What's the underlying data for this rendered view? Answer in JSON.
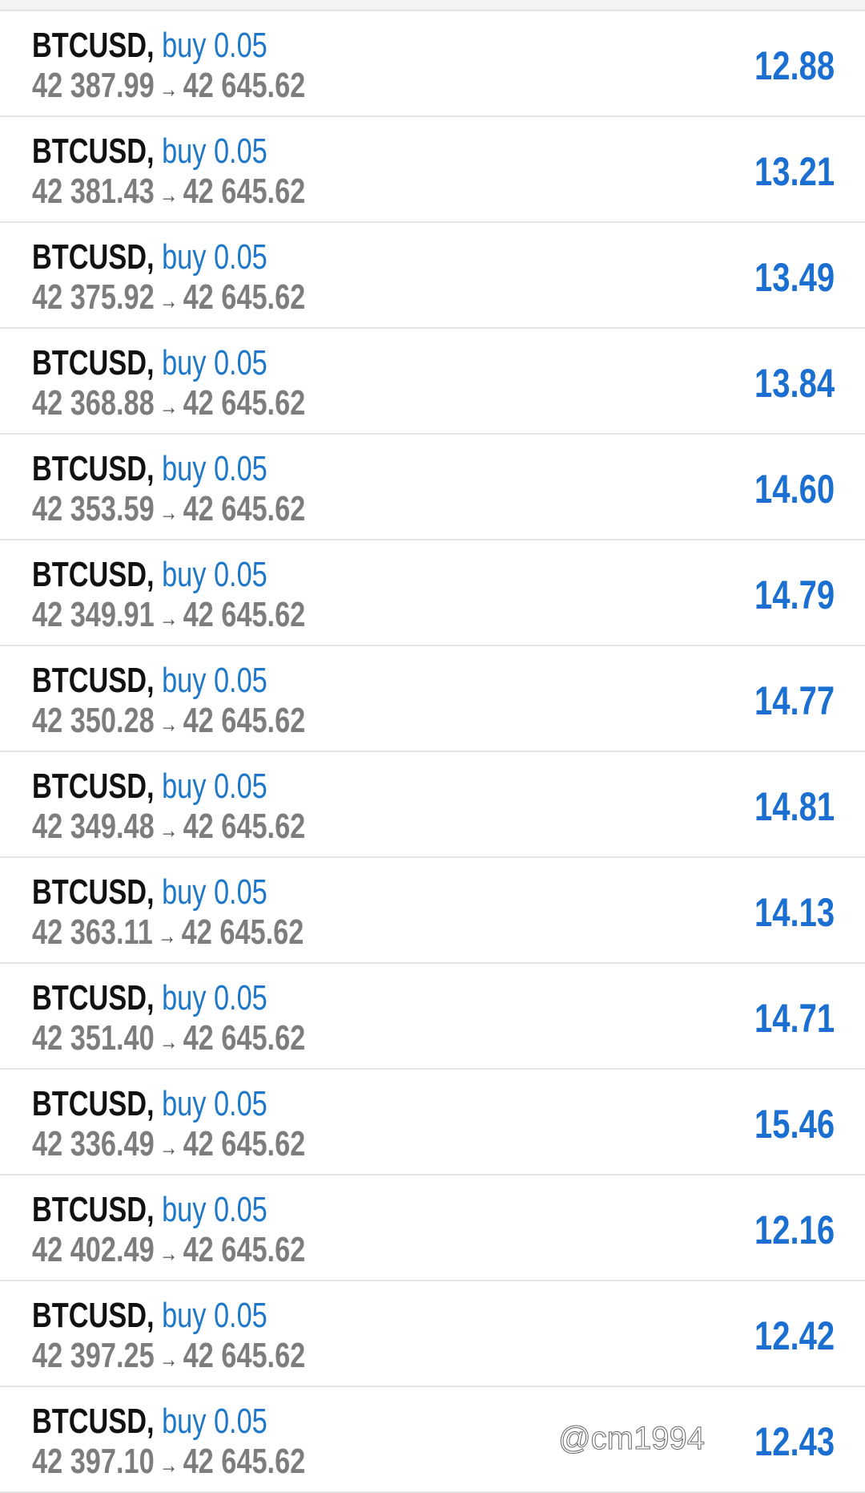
{
  "positions": [
    {
      "symbol": "BTCUSD,",
      "side": "buy 0.05",
      "open": "42 387.99",
      "arrow": "→",
      "current": "42 645.62",
      "profit": "12.88"
    },
    {
      "symbol": "BTCUSD,",
      "side": "buy 0.05",
      "open": "42 381.43",
      "arrow": "→",
      "current": "42 645.62",
      "profit": "13.21"
    },
    {
      "symbol": "BTCUSD,",
      "side": "buy 0.05",
      "open": "42 375.92",
      "arrow": "→",
      "current": "42 645.62",
      "profit": "13.49"
    },
    {
      "symbol": "BTCUSD,",
      "side": "buy 0.05",
      "open": "42 368.88",
      "arrow": "→",
      "current": "42 645.62",
      "profit": "13.84"
    },
    {
      "symbol": "BTCUSD,",
      "side": "buy 0.05",
      "open": "42 353.59",
      "arrow": "→",
      "current": "42 645.62",
      "profit": "14.60"
    },
    {
      "symbol": "BTCUSD,",
      "side": "buy 0.05",
      "open": "42 349.91",
      "arrow": "→",
      "current": "42 645.62",
      "profit": "14.79"
    },
    {
      "symbol": "BTCUSD,",
      "side": "buy 0.05",
      "open": "42 350.28",
      "arrow": "→",
      "current": "42 645.62",
      "profit": "14.77"
    },
    {
      "symbol": "BTCUSD,",
      "side": "buy 0.05",
      "open": "42 349.48",
      "arrow": "→",
      "current": "42 645.62",
      "profit": "14.81"
    },
    {
      "symbol": "BTCUSD,",
      "side": "buy 0.05",
      "open": "42 363.11",
      "arrow": "→",
      "current": "42 645.62",
      "profit": "14.13"
    },
    {
      "symbol": "BTCUSD,",
      "side": "buy 0.05",
      "open": "42 351.40",
      "arrow": "→",
      "current": "42 645.62",
      "profit": "14.71"
    },
    {
      "symbol": "BTCUSD,",
      "side": "buy 0.05",
      "open": "42 336.49",
      "arrow": "→",
      "current": "42 645.62",
      "profit": "15.46"
    },
    {
      "symbol": "BTCUSD,",
      "side": "buy 0.05",
      "open": "42 402.49",
      "arrow": "→",
      "current": "42 645.62",
      "profit": "12.16"
    },
    {
      "symbol": "BTCUSD,",
      "side": "buy 0.05",
      "open": "42 397.25",
      "arrow": "→",
      "current": "42 645.62",
      "profit": "12.42"
    },
    {
      "symbol": "BTCUSD,",
      "side": "buy 0.05",
      "open": "42 397.10",
      "arrow": "→",
      "current": "42 645.62",
      "profit": "12.43"
    }
  ],
  "watermark": "@cm1994",
  "colors": {
    "side": "#1f77c8",
    "profit": "#1a6fd1",
    "price": "#7d7d7d"
  }
}
